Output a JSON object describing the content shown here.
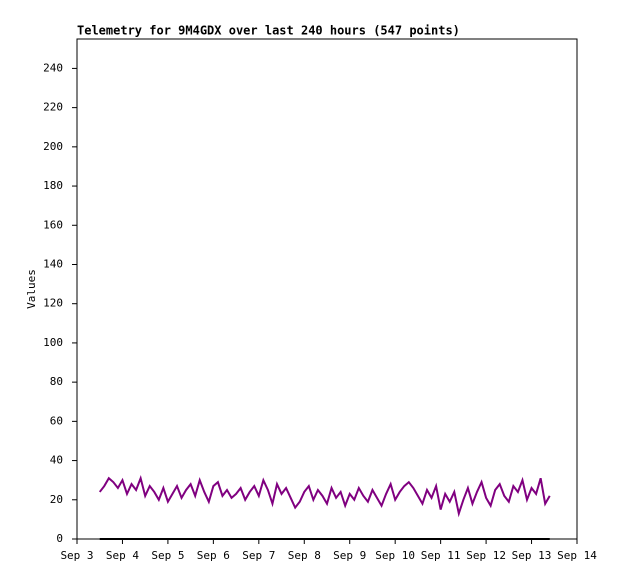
{
  "chart_data": {
    "type": "line",
    "title": "Telemetry for 9M4GDX over last 240 hours (547 points)",
    "y_label": "Values",
    "xlim": [
      3,
      14
    ],
    "xticks": [
      {
        "value": 3,
        "label": "Sep 3"
      },
      {
        "value": 4,
        "label": "Sep 4"
      },
      {
        "value": 5,
        "label": "Sep 5"
      },
      {
        "value": 6,
        "label": "Sep 6"
      },
      {
        "value": 7,
        "label": "Sep 7"
      },
      {
        "value": 8,
        "label": "Sep 8"
      },
      {
        "value": 9,
        "label": "Sep 9"
      },
      {
        "value": 10,
        "label": "Sep 10"
      },
      {
        "value": 11,
        "label": "Sep 11"
      },
      {
        "value": 12,
        "label": "Sep 12"
      },
      {
        "value": 13,
        "label": "Sep 13"
      },
      {
        "value": 14,
        "label": "Sep 14"
      }
    ],
    "ylim": [
      0,
      255
    ],
    "yticks": [
      0,
      20,
      40,
      60,
      80,
      100,
      120,
      140,
      160,
      180,
      200,
      220,
      240
    ],
    "series": [
      {
        "color": "#800080",
        "x": [
          3.5,
          3.6,
          3.7,
          3.8,
          3.9,
          4.0,
          4.1,
          4.2,
          4.3,
          4.4,
          4.5,
          4.6,
          4.7,
          4.8,
          4.9,
          5.0,
          5.1,
          5.2,
          5.3,
          5.4,
          5.5,
          5.6,
          5.7,
          5.8,
          5.9,
          6.0,
          6.1,
          6.2,
          6.3,
          6.4,
          6.5,
          6.6,
          6.7,
          6.8,
          6.9,
          7.0,
          7.1,
          7.2,
          7.3,
          7.4,
          7.5,
          7.6,
          7.7,
          7.8,
          7.9,
          8.0,
          8.1,
          8.2,
          8.3,
          8.4,
          8.5,
          8.6,
          8.7,
          8.8,
          8.9,
          9.0,
          9.1,
          9.2,
          9.3,
          9.4,
          9.5,
          9.6,
          9.7,
          9.8,
          9.9,
          10.0,
          10.1,
          10.2,
          10.3,
          10.4,
          10.5,
          10.6,
          10.7,
          10.8,
          10.9,
          11.0,
          11.1,
          11.2,
          11.3,
          11.4,
          11.5,
          11.6,
          11.7,
          11.8,
          11.9,
          12.0,
          12.1,
          12.2,
          12.3,
          12.4,
          12.5,
          12.6,
          12.7,
          12.8,
          12.9,
          13.0,
          13.1,
          13.2,
          13.3,
          13.4
        ],
        "values": [
          24,
          27,
          31,
          29,
          26,
          30,
          23,
          28,
          25,
          31,
          22,
          27,
          24,
          20,
          26,
          19,
          23,
          27,
          21,
          25,
          28,
          22,
          30,
          24,
          19,
          27,
          29,
          22,
          25,
          21,
          23,
          26,
          20,
          24,
          27,
          22,
          30,
          25,
          18,
          28,
          23,
          26,
          21,
          16,
          19,
          24,
          27,
          20,
          25,
          22,
          18,
          26,
          21,
          24,
          17,
          23,
          20,
          26,
          22,
          19,
          25,
          21,
          17,
          23,
          28,
          20,
          24,
          27,
          29,
          26,
          22,
          18,
          25,
          21,
          27,
          15,
          23,
          19,
          24,
          13,
          20,
          26,
          18,
          24,
          29,
          21,
          17,
          25,
          28,
          22,
          19,
          27,
          24,
          30,
          20,
          26,
          23,
          31,
          18,
          22
        ]
      },
      {
        "color": "#000000",
        "x": [
          3.5,
          13.4
        ],
        "values": [
          0,
          0
        ]
      }
    ]
  }
}
